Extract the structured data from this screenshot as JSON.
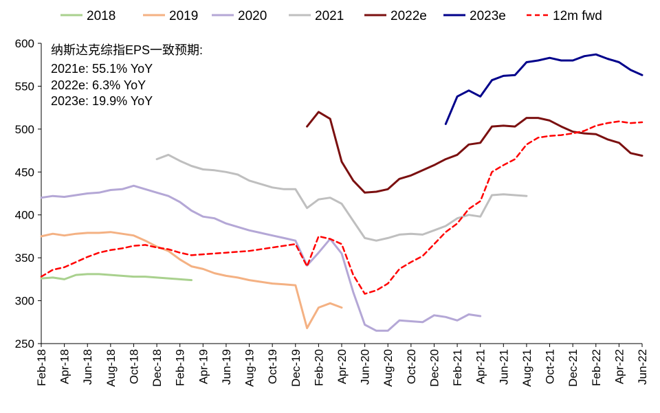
{
  "chart_data": {
    "type": "line",
    "title": "",
    "xlabel": "",
    "ylabel": "",
    "ylim": [
      250,
      600
    ],
    "yticks": [
      250,
      300,
      350,
      400,
      450,
      500,
      550,
      600
    ],
    "x_range": [
      "2018-02",
      "2022-06"
    ],
    "xticks": [
      "Feb-18",
      "Apr-18",
      "Jun-18",
      "Aug-18",
      "Oct-18",
      "Dec-18",
      "Feb-19",
      "Apr-19",
      "Jun-19",
      "Aug-19",
      "Oct-19",
      "Dec-19",
      "Feb-20",
      "Apr-20",
      "Jun-20",
      "Aug-20",
      "Oct-20",
      "Dec-20",
      "Feb-21",
      "Apr-21",
      "Jun-21",
      "Aug-21",
      "Oct-21",
      "Dec-21",
      "Feb-22",
      "Apr-22",
      "Jun-22"
    ],
    "grid": false,
    "legend_position": "top",
    "annotations": [
      "纳斯达克综指EPS一致预期:",
      "2021e: 55.1% YoY",
      "2022e: 6.3% YoY",
      "2023e: 19.9% YoY"
    ],
    "series": [
      {
        "name": "2018",
        "color": "#a9d18e",
        "dash": false,
        "points": [
          [
            "2018-02",
            326
          ],
          [
            "2018-03",
            327
          ],
          [
            "2018-04",
            325
          ],
          [
            "2018-05",
            330
          ],
          [
            "2018-06",
            331
          ],
          [
            "2018-07",
            331
          ],
          [
            "2018-08",
            330
          ],
          [
            "2018-09",
            329
          ],
          [
            "2018-10",
            328
          ],
          [
            "2018-11",
            328
          ],
          [
            "2018-12",
            327
          ],
          [
            "2019-01",
            326
          ],
          [
            "2019-02",
            325
          ],
          [
            "2019-03",
            324
          ]
        ]
      },
      {
        "name": "2019",
        "color": "#f4b183",
        "dash": false,
        "points": [
          [
            "2018-02",
            375
          ],
          [
            "2018-03",
            378
          ],
          [
            "2018-04",
            376
          ],
          [
            "2018-05",
            378
          ],
          [
            "2018-06",
            379
          ],
          [
            "2018-07",
            379
          ],
          [
            "2018-08",
            380
          ],
          [
            "2018-09",
            378
          ],
          [
            "2018-10",
            376
          ],
          [
            "2018-11",
            370
          ],
          [
            "2018-12",
            363
          ],
          [
            "2019-01",
            358
          ],
          [
            "2019-02",
            348
          ],
          [
            "2019-03",
            340
          ],
          [
            "2019-04",
            337
          ],
          [
            "2019-05",
            332
          ],
          [
            "2019-06",
            329
          ],
          [
            "2019-07",
            327
          ],
          [
            "2019-08",
            324
          ],
          [
            "2019-09",
            322
          ],
          [
            "2019-10",
            320
          ],
          [
            "2019-11",
            319
          ],
          [
            "2019-12",
            318
          ],
          [
            "2020-01",
            268
          ],
          [
            "2020-02",
            292
          ],
          [
            "2020-03",
            297
          ],
          [
            "2020-04",
            292
          ]
        ]
      },
      {
        "name": "2020",
        "color": "#b4a7d6",
        "dash": false,
        "points": [
          [
            "2018-02",
            420
          ],
          [
            "2018-03",
            422
          ],
          [
            "2018-04",
            421
          ],
          [
            "2018-05",
            423
          ],
          [
            "2018-06",
            425
          ],
          [
            "2018-07",
            426
          ],
          [
            "2018-08",
            429
          ],
          [
            "2018-09",
            430
          ],
          [
            "2018-10",
            434
          ],
          [
            "2018-11",
            430
          ],
          [
            "2018-12",
            426
          ],
          [
            "2019-01",
            422
          ],
          [
            "2019-02",
            415
          ],
          [
            "2019-03",
            405
          ],
          [
            "2019-04",
            398
          ],
          [
            "2019-05",
            396
          ],
          [
            "2019-06",
            390
          ],
          [
            "2019-07",
            386
          ],
          [
            "2019-08",
            382
          ],
          [
            "2019-09",
            379
          ],
          [
            "2019-10",
            376
          ],
          [
            "2019-11",
            373
          ],
          [
            "2019-12",
            370
          ],
          [
            "2020-01",
            341
          ],
          [
            "2020-02",
            356
          ],
          [
            "2020-03",
            372
          ],
          [
            "2020-04",
            355
          ],
          [
            "2020-05",
            310
          ],
          [
            "2020-06",
            272
          ],
          [
            "2020-07",
            265
          ],
          [
            "2020-08",
            265
          ],
          [
            "2020-09",
            277
          ],
          [
            "2020-10",
            276
          ],
          [
            "2020-11",
            275
          ],
          [
            "2020-12",
            283
          ],
          [
            "2021-01",
            281
          ],
          [
            "2021-02",
            277
          ],
          [
            "2021-03",
            284
          ],
          [
            "2021-04",
            282
          ]
        ]
      },
      {
        "name": "2021",
        "color": "#bfbfbf",
        "dash": false,
        "points": [
          [
            "2018-12",
            465
          ],
          [
            "2019-01",
            470
          ],
          [
            "2019-02",
            463
          ],
          [
            "2019-03",
            457
          ],
          [
            "2019-04",
            453
          ],
          [
            "2019-05",
            452
          ],
          [
            "2019-06",
            450
          ],
          [
            "2019-07",
            447
          ],
          [
            "2019-08",
            440
          ],
          [
            "2019-09",
            436
          ],
          [
            "2019-10",
            432
          ],
          [
            "2019-11",
            430
          ],
          [
            "2019-12",
            430
          ],
          [
            "2020-01",
            408
          ],
          [
            "2020-02",
            418
          ],
          [
            "2020-03",
            420
          ],
          [
            "2020-04",
            413
          ],
          [
            "2020-05",
            393
          ],
          [
            "2020-06",
            373
          ],
          [
            "2020-07",
            370
          ],
          [
            "2020-08",
            373
          ],
          [
            "2020-09",
            377
          ],
          [
            "2020-10",
            378
          ],
          [
            "2020-11",
            377
          ],
          [
            "2020-12",
            382
          ],
          [
            "2021-01",
            387
          ],
          [
            "2021-02",
            396
          ],
          [
            "2021-03",
            400
          ],
          [
            "2021-04",
            398
          ],
          [
            "2021-05",
            423
          ],
          [
            "2021-06",
            424
          ],
          [
            "2021-07",
            423
          ],
          [
            "2021-08",
            422
          ]
        ]
      },
      {
        "name": "2022e",
        "color": "#7b1010",
        "dash": false,
        "points": [
          [
            "2020-01",
            503
          ],
          [
            "2020-02",
            520
          ],
          [
            "2020-03",
            512
          ],
          [
            "2020-04",
            462
          ],
          [
            "2020-05",
            440
          ],
          [
            "2020-06",
            426
          ],
          [
            "2020-07",
            427
          ],
          [
            "2020-08",
            430
          ],
          [
            "2020-09",
            442
          ],
          [
            "2020-10",
            446
          ],
          [
            "2020-11",
            452
          ],
          [
            "2020-12",
            458
          ],
          [
            "2021-01",
            465
          ],
          [
            "2021-02",
            470
          ],
          [
            "2021-03",
            482
          ],
          [
            "2021-04",
            484
          ],
          [
            "2021-05",
            503
          ],
          [
            "2021-06",
            504
          ],
          [
            "2021-07",
            503
          ],
          [
            "2021-08",
            513
          ],
          [
            "2021-09",
            513
          ],
          [
            "2021-10",
            510
          ],
          [
            "2021-11",
            503
          ],
          [
            "2021-12",
            497
          ],
          [
            "2022-01",
            495
          ],
          [
            "2022-02",
            494
          ],
          [
            "2022-03",
            488
          ],
          [
            "2022-04",
            484
          ],
          [
            "2022-05",
            472
          ],
          [
            "2022-06",
            469
          ]
        ]
      },
      {
        "name": "2023e",
        "color": "#00008b",
        "dash": false,
        "points": [
          [
            "2021-01",
            506
          ],
          [
            "2021-02",
            538
          ],
          [
            "2021-03",
            545
          ],
          [
            "2021-04",
            538
          ],
          [
            "2021-05",
            557
          ],
          [
            "2021-06",
            562
          ],
          [
            "2021-07",
            563
          ],
          [
            "2021-08",
            578
          ],
          [
            "2021-09",
            580
          ],
          [
            "2021-10",
            583
          ],
          [
            "2021-11",
            580
          ],
          [
            "2021-12",
            580
          ],
          [
            "2022-01",
            585
          ],
          [
            "2022-02",
            587
          ],
          [
            "2022-03",
            582
          ],
          [
            "2022-04",
            578
          ],
          [
            "2022-05",
            569
          ],
          [
            "2022-06",
            563
          ]
        ]
      },
      {
        "name": "12m fwd",
        "color": "#ff0000",
        "dash": true,
        "points": [
          [
            "2018-02",
            328
          ],
          [
            "2018-03",
            336
          ],
          [
            "2018-04",
            339
          ],
          [
            "2018-05",
            345
          ],
          [
            "2018-06",
            351
          ],
          [
            "2018-07",
            356
          ],
          [
            "2018-08",
            359
          ],
          [
            "2018-09",
            361
          ],
          [
            "2018-10",
            364
          ],
          [
            "2018-11",
            365
          ],
          [
            "2018-12",
            362
          ],
          [
            "2019-01",
            360
          ],
          [
            "2019-02",
            356
          ],
          [
            "2019-03",
            353
          ],
          [
            "2019-04",
            354
          ],
          [
            "2019-05",
            355
          ],
          [
            "2019-06",
            356
          ],
          [
            "2019-07",
            357
          ],
          [
            "2019-08",
            358
          ],
          [
            "2019-09",
            360
          ],
          [
            "2019-10",
            362
          ],
          [
            "2019-11",
            364
          ],
          [
            "2019-12",
            366
          ],
          [
            "2020-01",
            340
          ],
          [
            "2020-02",
            375
          ],
          [
            "2020-03",
            372
          ],
          [
            "2020-04",
            366
          ],
          [
            "2020-05",
            330
          ],
          [
            "2020-06",
            308
          ],
          [
            "2020-07",
            312
          ],
          [
            "2020-08",
            320
          ],
          [
            "2020-09",
            337
          ],
          [
            "2020-10",
            345
          ],
          [
            "2020-11",
            352
          ],
          [
            "2020-12",
            366
          ],
          [
            "2021-01",
            380
          ],
          [
            "2021-02",
            390
          ],
          [
            "2021-03",
            407
          ],
          [
            "2021-04",
            416
          ],
          [
            "2021-05",
            450
          ],
          [
            "2021-06",
            458
          ],
          [
            "2021-07",
            465
          ],
          [
            "2021-08",
            482
          ],
          [
            "2021-09",
            490
          ],
          [
            "2021-10",
            492
          ],
          [
            "2021-11",
            493
          ],
          [
            "2021-12",
            495
          ],
          [
            "2022-01",
            498
          ],
          [
            "2022-02",
            504
          ],
          [
            "2022-03",
            507
          ],
          [
            "2022-04",
            509
          ],
          [
            "2022-05",
            507
          ],
          [
            "2022-06",
            508
          ]
        ]
      }
    ]
  }
}
